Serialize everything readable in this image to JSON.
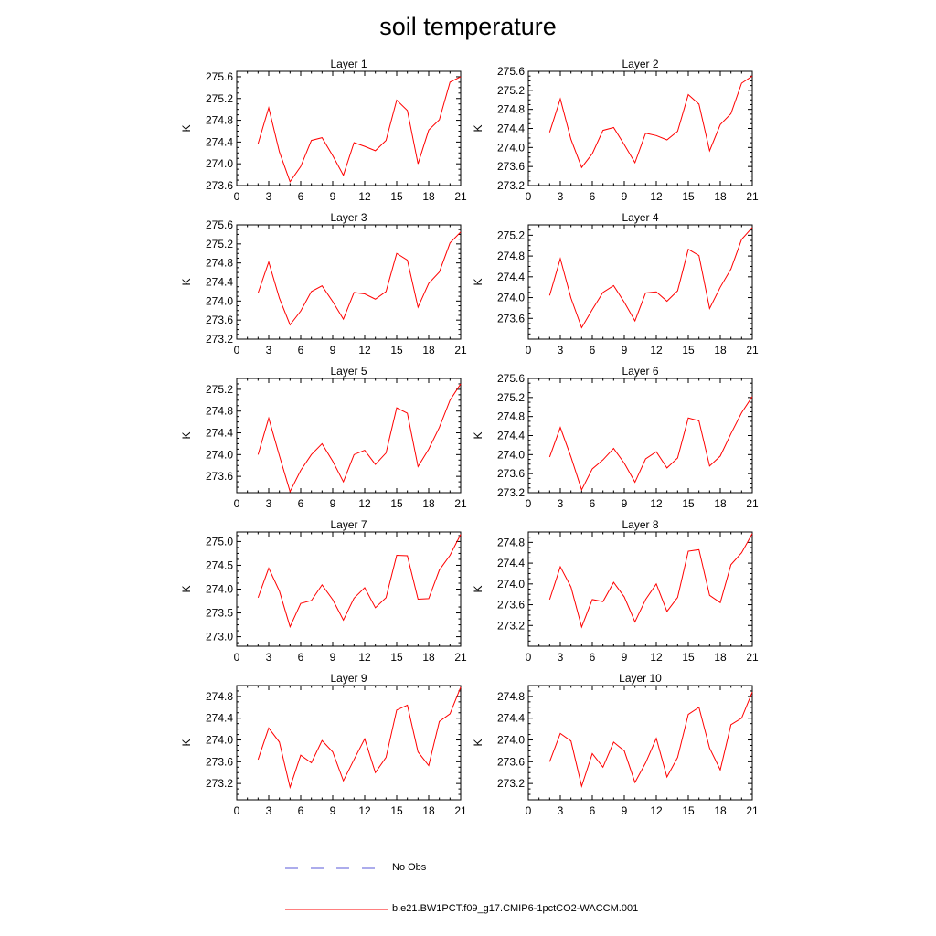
{
  "title": "soil temperature",
  "colors": {
    "model_line": "#ff0000",
    "obs_line": "#5a5ad8",
    "axis": "#000000"
  },
  "legend": {
    "entries": [
      {
        "label": "No Obs",
        "style": "dashed",
        "color": "#5a5ad8"
      },
      {
        "label": "b.e21.BW1PCT.f09_g17.CMIP6-1pctCO2-WACCM.001",
        "style": "solid",
        "color": "#ff0000"
      }
    ]
  },
  "chart_data": [
    {
      "type": "line",
      "title": "Layer 1",
      "ylabel": "K",
      "xlim": [
        0,
        21
      ],
      "xticks": [
        0,
        3,
        6,
        9,
        12,
        15,
        18,
        21
      ],
      "ylim": [
        273.6,
        275.7
      ],
      "yticks": [
        273.6,
        274.0,
        274.4,
        274.8,
        275.2,
        275.6
      ],
      "series": [
        {
          "x": [
            2,
            3,
            4,
            5,
            6,
            7,
            8,
            9,
            10,
            11,
            12,
            13,
            14,
            15,
            16,
            17,
            18,
            19,
            20,
            21
          ],
          "values": [
            274.37,
            275.03,
            274.22,
            273.67,
            273.95,
            274.43,
            274.48,
            274.15,
            273.79,
            274.39,
            274.32,
            274.24,
            274.43,
            275.17,
            274.98,
            274.0,
            274.62,
            274.81,
            275.5,
            275.6
          ]
        }
      ]
    },
    {
      "type": "line",
      "title": "Layer 2",
      "ylabel": "K",
      "xlim": [
        0,
        21
      ],
      "xticks": [
        0,
        3,
        6,
        9,
        12,
        15,
        18,
        21
      ],
      "ylim": [
        273.2,
        275.6
      ],
      "yticks": [
        273.2,
        273.6,
        274.0,
        274.4,
        274.8,
        275.2,
        275.6
      ],
      "series": [
        {
          "x": [
            2,
            3,
            4,
            5,
            6,
            7,
            8,
            9,
            10,
            11,
            12,
            13,
            14,
            15,
            16,
            17,
            18,
            19,
            20,
            21
          ],
          "values": [
            274.32,
            275.02,
            274.17,
            273.58,
            273.87,
            274.36,
            274.42,
            274.06,
            273.68,
            274.3,
            274.25,
            274.16,
            274.34,
            275.11,
            274.91,
            273.93,
            274.48,
            274.71,
            275.35,
            275.5
          ]
        }
      ]
    },
    {
      "type": "line",
      "title": "Layer 3",
      "ylabel": "K",
      "xlim": [
        0,
        21
      ],
      "xticks": [
        0,
        3,
        6,
        9,
        12,
        15,
        18,
        21
      ],
      "ylim": [
        273.2,
        275.6
      ],
      "yticks": [
        273.2,
        273.6,
        274.0,
        274.4,
        274.8,
        275.2,
        275.6
      ],
      "series": [
        {
          "x": [
            2,
            3,
            4,
            5,
            6,
            7,
            8,
            9,
            10,
            11,
            12,
            13,
            14,
            15,
            16,
            17,
            18,
            19,
            20,
            21
          ],
          "values": [
            274.17,
            274.82,
            274.06,
            273.5,
            273.79,
            274.2,
            274.32,
            273.99,
            273.62,
            274.18,
            274.15,
            274.04,
            274.2,
            275.0,
            274.86,
            273.87,
            274.37,
            274.61,
            275.22,
            275.45
          ]
        }
      ]
    },
    {
      "type": "line",
      "title": "Layer 4",
      "ylabel": "K",
      "xlim": [
        0,
        21
      ],
      "xticks": [
        0,
        3,
        6,
        9,
        12,
        15,
        18,
        21
      ],
      "ylim": [
        273.2,
        275.4
      ],
      "yticks": [
        273.6,
        274.0,
        274.4,
        274.8,
        275.2
      ],
      "series": [
        {
          "x": [
            2,
            3,
            4,
            5,
            6,
            7,
            8,
            9,
            10,
            11,
            12,
            13,
            14,
            15,
            16,
            17,
            18,
            19,
            20,
            21
          ],
          "values": [
            274.04,
            274.75,
            273.99,
            273.42,
            273.77,
            274.1,
            274.23,
            273.91,
            273.55,
            274.09,
            274.11,
            273.93,
            274.13,
            274.93,
            274.81,
            273.79,
            274.2,
            274.55,
            275.12,
            275.35
          ]
        }
      ]
    },
    {
      "type": "line",
      "title": "Layer 5",
      "ylabel": "K",
      "xlim": [
        0,
        21
      ],
      "xticks": [
        0,
        3,
        6,
        9,
        12,
        15,
        18,
        21
      ],
      "ylim": [
        273.3,
        275.4
      ],
      "yticks": [
        273.6,
        274.0,
        274.4,
        274.8,
        275.2
      ],
      "series": [
        {
          "x": [
            2,
            3,
            4,
            5,
            6,
            7,
            8,
            9,
            10,
            11,
            12,
            13,
            14,
            15,
            16,
            17,
            18,
            19,
            20,
            21
          ],
          "values": [
            274.0,
            274.67,
            273.98,
            273.32,
            273.71,
            274.0,
            274.2,
            273.88,
            273.5,
            274.0,
            274.08,
            273.82,
            274.03,
            274.86,
            274.76,
            273.78,
            274.1,
            274.5,
            275.0,
            275.3
          ]
        }
      ]
    },
    {
      "type": "line",
      "title": "Layer 6",
      "ylabel": "K",
      "xlim": [
        0,
        21
      ],
      "xticks": [
        0,
        3,
        6,
        9,
        12,
        15,
        18,
        21
      ],
      "ylim": [
        273.2,
        275.6
      ],
      "yticks": [
        273.2,
        273.6,
        274.0,
        274.4,
        274.8,
        275.2,
        275.6
      ],
      "series": [
        {
          "x": [
            2,
            3,
            4,
            5,
            6,
            7,
            8,
            9,
            10,
            11,
            12,
            13,
            14,
            15,
            16,
            17,
            18,
            19,
            20,
            21
          ],
          "values": [
            273.95,
            274.57,
            273.95,
            273.26,
            273.7,
            273.89,
            274.13,
            273.82,
            273.42,
            273.91,
            274.06,
            273.72,
            273.93,
            274.77,
            274.71,
            273.76,
            273.97,
            274.44,
            274.88,
            275.22
          ]
        }
      ]
    },
    {
      "type": "line",
      "title": "Layer 7",
      "ylabel": "K",
      "xlim": [
        0,
        21
      ],
      "xticks": [
        0,
        3,
        6,
        9,
        12,
        15,
        18,
        21
      ],
      "ylim": [
        272.8,
        275.2
      ],
      "yticks": [
        273.0,
        273.5,
        274.0,
        274.5,
        275.0
      ],
      "series": [
        {
          "x": [
            2,
            3,
            4,
            5,
            6,
            7,
            8,
            9,
            10,
            11,
            12,
            13,
            14,
            15,
            16,
            17,
            18,
            19,
            20,
            21
          ],
          "values": [
            273.82,
            274.44,
            273.96,
            273.21,
            273.7,
            273.76,
            274.09,
            273.78,
            273.35,
            273.81,
            274.03,
            273.61,
            273.82,
            274.71,
            274.7,
            273.79,
            273.8,
            274.4,
            274.71,
            275.15
          ]
        }
      ]
    },
    {
      "type": "line",
      "title": "Layer 8",
      "ylabel": "K",
      "xlim": [
        0,
        21
      ],
      "xticks": [
        0,
        3,
        6,
        9,
        12,
        15,
        18,
        21
      ],
      "ylim": [
        272.8,
        275.0
      ],
      "yticks": [
        273.2,
        273.6,
        274.0,
        274.4,
        274.8
      ],
      "series": [
        {
          "x": [
            2,
            3,
            4,
            5,
            6,
            7,
            8,
            9,
            10,
            11,
            12,
            13,
            14,
            15,
            16,
            17,
            18,
            19,
            20,
            21
          ],
          "values": [
            273.7,
            274.33,
            273.94,
            273.17,
            273.7,
            273.66,
            274.03,
            273.75,
            273.27,
            273.7,
            274.0,
            273.47,
            273.74,
            274.63,
            274.66,
            273.78,
            273.64,
            274.37,
            274.6,
            274.97
          ]
        }
      ]
    },
    {
      "type": "line",
      "title": "Layer 9",
      "ylabel": "K",
      "xlim": [
        0,
        21
      ],
      "xticks": [
        0,
        3,
        6,
        9,
        12,
        15,
        18,
        21
      ],
      "ylim": [
        272.9,
        275.0
      ],
      "yticks": [
        273.2,
        273.6,
        274.0,
        274.4,
        274.8
      ],
      "series": [
        {
          "x": [
            2,
            3,
            4,
            5,
            6,
            7,
            8,
            9,
            10,
            11,
            12,
            13,
            14,
            15,
            16,
            17,
            18,
            19,
            20,
            21
          ],
          "values": [
            273.64,
            274.22,
            273.96,
            273.13,
            273.72,
            273.58,
            273.99,
            273.78,
            273.25,
            273.64,
            274.02,
            273.4,
            273.68,
            274.55,
            274.64,
            273.78,
            273.53,
            274.34,
            274.48,
            274.97
          ]
        }
      ]
    },
    {
      "type": "line",
      "title": "Layer 10",
      "ylabel": "K",
      "xlim": [
        0,
        21
      ],
      "xticks": [
        0,
        3,
        6,
        9,
        12,
        15,
        18,
        21
      ],
      "ylim": [
        272.9,
        275.0
      ],
      "yticks": [
        273.2,
        273.6,
        274.0,
        274.4,
        274.8
      ],
      "series": [
        {
          "x": [
            2,
            3,
            4,
            5,
            6,
            7,
            8,
            9,
            10,
            11,
            12,
            13,
            14,
            15,
            16,
            17,
            18,
            19,
            20,
            21
          ],
          "values": [
            273.6,
            274.12,
            273.98,
            273.15,
            273.75,
            273.5,
            273.96,
            273.8,
            273.22,
            273.58,
            274.03,
            273.32,
            273.68,
            274.47,
            274.6,
            273.85,
            273.45,
            274.28,
            274.4,
            274.88
          ]
        }
      ]
    }
  ]
}
